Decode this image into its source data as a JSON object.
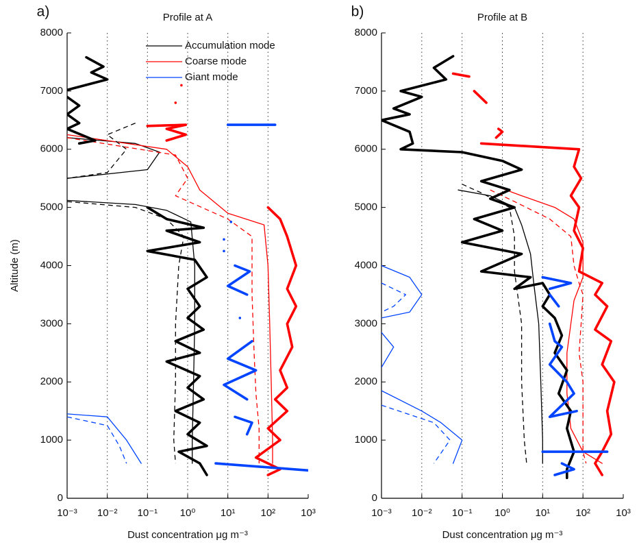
{
  "chart_data": [
    {
      "type": "line",
      "panel_label": "a)",
      "title": "Profile at A",
      "xlabel": "Dust concentration μg m⁻³",
      "ylabel": "Altitude (m)",
      "xscale": "log",
      "xlim": [
        0.001,
        1000
      ],
      "ylim": [
        0,
        8000
      ],
      "xticks": [
        {
          "value": 0.001,
          "label": "10⁻³"
        },
        {
          "value": 0.01,
          "label": "10⁻²"
        },
        {
          "value": 0.1,
          "label": "10⁻¹"
        },
        {
          "value": 1,
          "label": "10⁰"
        },
        {
          "value": 10,
          "label": "10¹"
        },
        {
          "value": 100,
          "label": "10²"
        },
        {
          "value": 1000,
          "label": "10³"
        }
      ],
      "yticks": [
        0,
        1000,
        2000,
        3000,
        4000,
        5000,
        6000,
        7000,
        8000
      ],
      "grid": "x",
      "legend": "upper right",
      "series": [
        {
          "name": "Accumulation mode",
          "color": "#000000",
          "style": "thin",
          "x": [
            0.001,
            0.05,
            0.2,
            0.1,
            0.001,
            null,
            0.001,
            0.05,
            0.3,
            1.2,
            1.5,
            1.5,
            1.4,
            1.3,
            1.3
          ],
          "y": [
            6200,
            6100,
            5950,
            5650,
            5500,
            null,
            5120,
            5050,
            4950,
            4750,
            4000,
            3000,
            2000,
            1000,
            600
          ]
        },
        {
          "name": "Coarse mode",
          "color": "#ff0000",
          "style": "thin",
          "x": [
            0.001,
            0.3,
            1,
            2,
            10,
            80,
            100,
            110,
            120,
            130,
            130
          ],
          "y": [
            6250,
            6000,
            5700,
            5300,
            4900,
            4700,
            4000,
            3000,
            2000,
            1000,
            600
          ]
        },
        {
          "name": "Giant mode",
          "color": "#0044ff",
          "style": "thin",
          "x": [
            0.001,
            0.01,
            0.03,
            0.07
          ],
          "y": [
            1450,
            1400,
            1000,
            600
          ]
        },
        {
          "color": "#000000",
          "style": "dashed",
          "x": [
            0.05,
            0.01,
            0.03,
            0.01,
            0.001,
            null,
            0.001,
            0.05,
            0.3,
            0.8,
            0.6,
            0.5,
            0.5,
            0.45,
            0.5
          ],
          "y": [
            6450,
            6250,
            6000,
            5600,
            5500,
            null,
            5100,
            5000,
            4800,
            4500,
            4000,
            3000,
            2000,
            1000,
            600
          ]
        },
        {
          "color": "#ff0000",
          "style": "dashed",
          "x": [
            0.001,
            0.5,
            1,
            0.5,
            10,
            40,
            40,
            45,
            50,
            60,
            60
          ],
          "y": [
            6200,
            5900,
            5500,
            5200,
            4800,
            4500,
            3500,
            2500,
            1800,
            1200,
            600
          ]
        },
        {
          "color": "#0044ff",
          "style": "dashed",
          "x": [
            0.001,
            0.01,
            0.02,
            0.03
          ],
          "y": [
            1400,
            1250,
            900,
            600
          ]
        },
        {
          "color": "#000000",
          "style": "thick",
          "x": [
            0.003,
            0.008,
            0.004,
            0.01,
            0.001,
            null,
            0.001,
            0.002,
            0.001,
            0.002,
            0.001,
            0.005,
            0.002,
            null,
            0.1,
            0.3,
            2.5,
            0.3,
            2,
            0.1,
            1.5,
            3,
            1,
            2,
            1,
            2.5,
            0.5,
            2,
            0.3,
            2,
            1,
            2.5,
            0.5,
            2,
            1,
            3,
            0.6,
            2,
            3
          ],
          "y": [
            7580,
            7420,
            7320,
            7200,
            7020,
            null,
            6900,
            6750,
            6600,
            6450,
            6350,
            6150,
            6100,
            null,
            5000,
            4800,
            4650,
            4600,
            4400,
            4250,
            4100,
            3800,
            3600,
            3300,
            3100,
            2900,
            2700,
            2500,
            2350,
            2100,
            1900,
            1700,
            1500,
            1300,
            1100,
            900,
            800,
            600,
            400
          ]
        },
        {
          "color": "#ff0000",
          "style": "thick",
          "x": [
            0.7,
            null,
            0.5,
            null,
            0.1,
            0.9,
            0.3,
            0.9,
            0.3,
            null,
            100,
            200,
            300,
            500,
            300,
            500,
            300,
            400,
            200,
            300,
            150,
            300,
            100,
            200,
            50,
            200,
            100
          ],
          "y": [
            7100,
            null,
            6800,
            null,
            6400,
            6420,
            6350,
            6250,
            6150,
            null,
            5000,
            4800,
            4500,
            4000,
            3600,
            3300,
            3000,
            2600,
            2200,
            1900,
            1700,
            1500,
            1200,
            1000,
            700,
            500,
            400
          ]
        },
        {
          "color": "#0044ff",
          "style": "thick",
          "x": [
            10,
            150,
            null,
            12,
            null,
            8,
            null,
            8,
            null,
            15,
            35,
            10,
            30,
            null,
            20,
            null,
            40,
            10,
            50,
            8,
            30,
            null,
            15,
            40,
            30,
            null,
            5,
            1000
          ],
          "y": [
            6420,
            6420,
            null,
            4750,
            null,
            4450,
            null,
            4250,
            null,
            4000,
            3900,
            3650,
            3500,
            null,
            3100,
            null,
            2700,
            2400,
            2200,
            1950,
            1700,
            null,
            1400,
            1300,
            1100,
            null,
            600,
            480
          ]
        }
      ]
    },
    {
      "type": "line",
      "panel_label": "b)",
      "title": "Profile at B",
      "xlabel": "Dust concentration μg m⁻³",
      "xscale": "log",
      "xlim": [
        0.001,
        1000
      ],
      "ylim": [
        0,
        8000
      ],
      "xticks": [
        {
          "value": 0.001,
          "label": "10⁻³"
        },
        {
          "value": 0.01,
          "label": "10⁻²"
        },
        {
          "value": 0.1,
          "label": "10⁻¹"
        },
        {
          "value": 1,
          "label": "10⁰"
        },
        {
          "value": 10,
          "label": "10¹"
        },
        {
          "value": 100,
          "label": "10²"
        },
        {
          "value": 1000,
          "label": "10³"
        }
      ],
      "yticks": [
        0,
        1000,
        2000,
        3000,
        4000,
        5000,
        6000,
        7000,
        8000
      ],
      "grid": "x",
      "series": [
        {
          "color": "#000000",
          "style": "thin",
          "x": [
            0.08,
            0.5,
            2,
            3,
            5,
            6,
            8,
            9,
            10,
            10
          ],
          "y": [
            5300,
            5200,
            5000,
            4700,
            4200,
            3700,
            3000,
            2000,
            1000,
            600
          ]
        },
        {
          "color": "#ff0000",
          "style": "thin",
          "x": [
            0.5,
            3,
            20,
            60,
            100,
            100,
            60,
            50,
            40,
            40,
            50,
            100,
            300
          ],
          "y": [
            5400,
            5200,
            5000,
            4800,
            4400,
            3800,
            3400,
            3000,
            2500,
            1800,
            1200,
            800,
            600
          ]
        },
        {
          "color": "#0044ff",
          "style": "thin",
          "x": [
            0.001,
            0.005,
            0.01,
            0.005,
            0.001,
            null,
            0.001,
            0.002,
            0.001,
            null,
            0.001,
            0.01,
            0.03,
            0.1,
            0.06
          ],
          "y": [
            4000,
            3800,
            3500,
            3200,
            3100,
            null,
            2850,
            2600,
            2250,
            null,
            1850,
            1500,
            1300,
            1000,
            600
          ]
        },
        {
          "color": "#000000",
          "style": "dashed",
          "x": [
            0.1,
            0.3,
            1.5,
            2,
            2,
            3,
            3,
            3.5,
            4
          ],
          "y": [
            5400,
            5250,
            5000,
            4500,
            3900,
            3000,
            2000,
            1000,
            600
          ]
        },
        {
          "color": "#ff0000",
          "style": "dashed",
          "x": [
            0.5,
            2,
            15,
            50,
            60,
            80,
            100,
            90,
            80,
            100,
            100,
            100,
            120
          ],
          "y": [
            5300,
            5100,
            4800,
            4500,
            4000,
            3700,
            3500,
            3000,
            2500,
            2000,
            1500,
            800,
            600
          ]
        },
        {
          "color": "#0044ff",
          "style": "dashed",
          "x": [
            0.001,
            0.004,
            0.002,
            0.001,
            null,
            0.001,
            0.02,
            0.05,
            0.02
          ],
          "y": [
            3700,
            3500,
            3300,
            3200,
            null,
            1600,
            1300,
            1000,
            600
          ]
        },
        {
          "color": "#000000",
          "style": "thick",
          "x": [
            0.06,
            0.02,
            0.04,
            0.003,
            0.01,
            0.002,
            0.005,
            0.001,
            0.005,
            0.006,
            0.003,
            0.1,
            1,
            3,
            0.3,
            1.5,
            0.5,
            2,
            0.2,
            1,
            0.1,
            3,
            0.3,
            5,
            2,
            10,
            15,
            10,
            20,
            30,
            20,
            40,
            25,
            50,
            40,
            60,
            40,
            40
          ],
          "y": [
            7600,
            7400,
            7200,
            7000,
            6900,
            6700,
            6600,
            6500,
            6300,
            6100,
            6000,
            5950,
            5800,
            5650,
            5450,
            5300,
            5150,
            5000,
            4800,
            4600,
            4400,
            4200,
            3900,
            3800,
            3600,
            3700,
            3500,
            3300,
            3100,
            2800,
            2500,
            2200,
            1800,
            1500,
            1200,
            800,
            500,
            350
          ]
        },
        {
          "color": "#ff0000",
          "style": "thick",
          "x": [
            0.06,
            0.15,
            null,
            0.2,
            0.4,
            null,
            0.8,
            1,
            0.7,
            null,
            0.3,
            80,
            60,
            90,
            50,
            80,
            60,
            100,
            80,
            300,
            200,
            400,
            200,
            500,
            300,
            600,
            400,
            500,
            300,
            200,
            300
          ],
          "y": [
            7300,
            7250,
            null,
            7000,
            6800,
            null,
            6350,
            6300,
            6200,
            null,
            6100,
            6000,
            5700,
            5500,
            5200,
            5000,
            4600,
            4300,
            3900,
            3700,
            3500,
            3300,
            2900,
            2700,
            2300,
            2000,
            1500,
            1100,
            800,
            600,
            400
          ]
        },
        {
          "color": "#0044ff",
          "style": "thick",
          "x": [
            10,
            50,
            15,
            null,
            15,
            25,
            null,
            15,
            20,
            30,
            15,
            40,
            60,
            15,
            70,
            null,
            10,
            400,
            null,
            20,
            60,
            30
          ],
          "y": [
            3800,
            3700,
            3600,
            null,
            3500,
            3300,
            null,
            3000,
            2700,
            2600,
            2300,
            2000,
            1800,
            1400,
            1500,
            null,
            800,
            800,
            null,
            400,
            500,
            600
          ]
        }
      ]
    }
  ]
}
